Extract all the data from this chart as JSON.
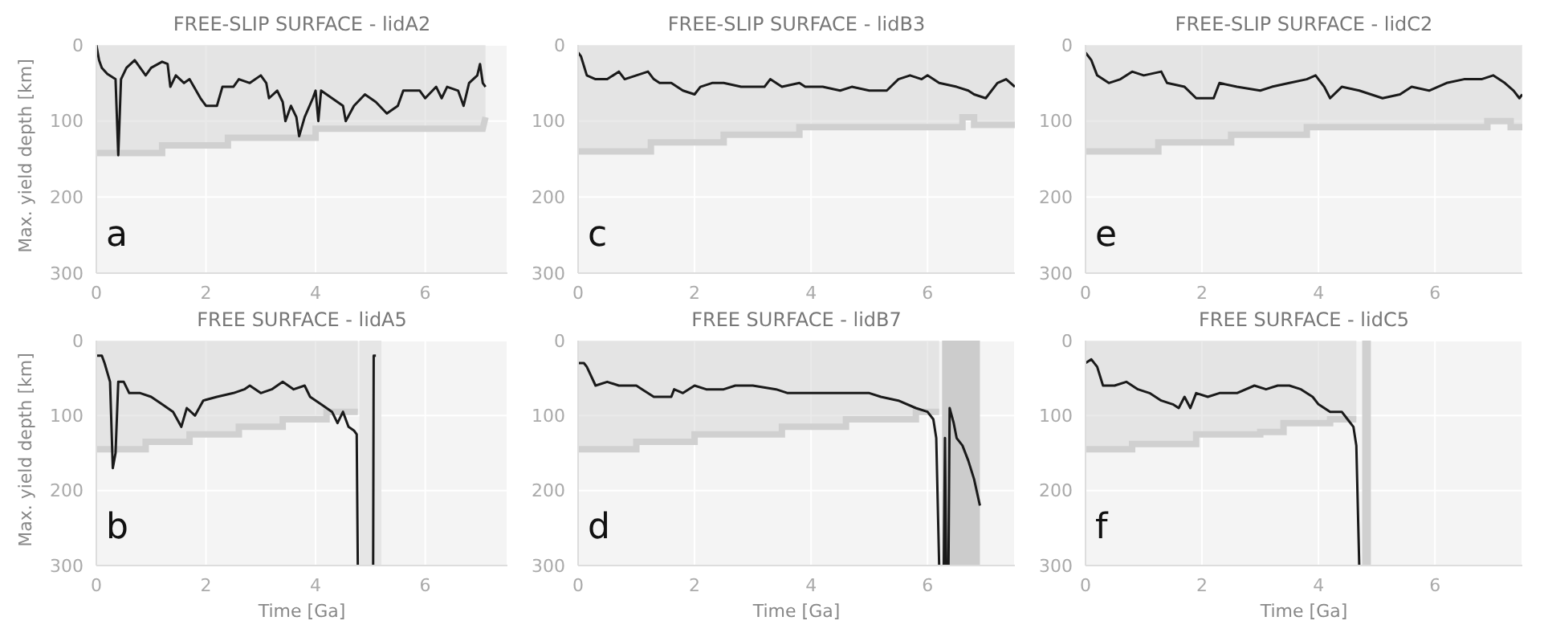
{
  "chart_data": [
    {
      "type": "line",
      "title": "FREE-SLIP SURFACE - lidA2",
      "ylabel": "Max. yield depth [km]",
      "xlim": [
        0,
        7.5
      ],
      "xticks": [
        0,
        2,
        4,
        6
      ],
      "ylim": [
        300,
        0
      ],
      "yticks": [
        0,
        100,
        200,
        300
      ],
      "grid": true,
      "annotations": [
        "a"
      ],
      "series": [
        {
          "type": "area",
          "color": "#d0d0d0",
          "x": [
            0,
            1.2,
            1.2,
            2.4,
            2.4,
            4.0,
            4.0,
            7.05,
            7.1
          ],
          "values": [
            142,
            142,
            132,
            132,
            122,
            122,
            110,
            110,
            95
          ]
        },
        {
          "type": "line",
          "color": "#1a1a1a",
          "x": [
            0,
            0.05,
            0.1,
            0.2,
            0.35,
            0.4,
            0.45,
            0.55,
            0.7,
            0.8,
            0.9,
            1.0,
            1.2,
            1.3,
            1.35,
            1.45,
            1.6,
            1.7,
            1.9,
            2.0,
            2.2,
            2.3,
            2.5,
            2.6,
            2.8,
            3.0,
            3.1,
            3.15,
            3.3,
            3.4,
            3.45,
            3.55,
            3.65,
            3.7,
            3.8,
            3.95,
            4.0,
            4.05,
            4.1,
            4.3,
            4.5,
            4.55,
            4.7,
            4.9,
            5.1,
            5.3,
            5.5,
            5.6,
            5.9,
            6.0,
            6.2,
            6.3,
            6.4,
            6.6,
            6.7,
            6.8,
            6.95,
            7.0,
            7.05,
            7.1
          ],
          "values": [
            0,
            20,
            30,
            38,
            45,
            145,
            45,
            30,
            20,
            30,
            40,
            30,
            22,
            25,
            55,
            40,
            50,
            45,
            70,
            80,
            80,
            55,
            55,
            45,
            50,
            40,
            50,
            70,
            60,
            75,
            100,
            80,
            95,
            120,
            95,
            70,
            60,
            100,
            60,
            70,
            80,
            100,
            80,
            65,
            75,
            90,
            80,
            60,
            60,
            70,
            55,
            70,
            55,
            60,
            80,
            50,
            40,
            25,
            50,
            55
          ]
        }
      ]
    },
    {
      "type": "line",
      "title": "FREE-SLIP SURFACE - lidB3",
      "xlim": [
        0,
        7.5
      ],
      "xticks": [
        0,
        2,
        4,
        6
      ],
      "ylim": [
        300,
        0
      ],
      "yticks": [
        0,
        100,
        200,
        300
      ],
      "grid": true,
      "annotations": [
        "c"
      ],
      "series": [
        {
          "type": "area",
          "color": "#d0d0d0",
          "x": [
            0,
            1.25,
            1.25,
            2.5,
            2.5,
            3.8,
            3.8,
            6.6,
            6.6,
            6.8,
            6.8,
            7.5
          ],
          "values": [
            140,
            140,
            128,
            128,
            118,
            118,
            108,
            108,
            95,
            95,
            105,
            105
          ]
        },
        {
          "type": "line",
          "color": "#1a1a1a",
          "x": [
            0,
            0.05,
            0.15,
            0.3,
            0.5,
            0.7,
            0.8,
            1.0,
            1.2,
            1.3,
            1.4,
            1.6,
            1.8,
            2.0,
            2.1,
            2.3,
            2.5,
            2.8,
            3.2,
            3.3,
            3.5,
            3.8,
            3.9,
            4.2,
            4.5,
            4.7,
            5.0,
            5.3,
            5.5,
            5.7,
            5.9,
            6.0,
            6.2,
            6.5,
            6.7,
            6.8,
            7.0,
            7.2,
            7.35,
            7.5
          ],
          "values": [
            10,
            15,
            40,
            45,
            45,
            35,
            45,
            40,
            35,
            45,
            50,
            50,
            60,
            65,
            55,
            50,
            50,
            55,
            55,
            45,
            55,
            50,
            55,
            55,
            60,
            55,
            60,
            60,
            45,
            40,
            45,
            40,
            50,
            55,
            60,
            65,
            70,
            50,
            45,
            55
          ]
        }
      ]
    },
    {
      "type": "line",
      "title": "FREE-SLIP SURFACE - lidC2",
      "xlim": [
        0,
        7.5
      ],
      "xticks": [
        0,
        2,
        4,
        6
      ],
      "ylim": [
        300,
        0
      ],
      "yticks": [
        0,
        100,
        200,
        300
      ],
      "grid": true,
      "annotations": [
        "e"
      ],
      "series": [
        {
          "type": "area",
          "color": "#d0d0d0",
          "x": [
            0,
            1.25,
            1.25,
            2.5,
            2.5,
            3.8,
            3.8,
            6.9,
            6.9,
            7.3,
            7.3,
            7.5
          ],
          "values": [
            140,
            140,
            128,
            128,
            118,
            118,
            108,
            108,
            100,
            100,
            108,
            108
          ]
        },
        {
          "type": "line",
          "color": "#1a1a1a",
          "x": [
            0,
            0.1,
            0.2,
            0.4,
            0.6,
            0.8,
            1.0,
            1.3,
            1.4,
            1.7,
            1.9,
            2.2,
            2.3,
            2.6,
            3.0,
            3.2,
            3.5,
            3.8,
            3.95,
            4.1,
            4.2,
            4.4,
            4.7,
            4.9,
            5.1,
            5.4,
            5.6,
            5.9,
            6.2,
            6.5,
            6.8,
            7.0,
            7.2,
            7.35,
            7.45,
            7.5
          ],
          "values": [
            10,
            20,
            40,
            50,
            45,
            35,
            40,
            35,
            50,
            55,
            70,
            70,
            50,
            55,
            60,
            55,
            50,
            45,
            40,
            55,
            70,
            55,
            60,
            65,
            70,
            65,
            55,
            60,
            50,
            45,
            45,
            40,
            50,
            60,
            70,
            65
          ]
        }
      ]
    },
    {
      "type": "line",
      "title": "FREE SURFACE - lidA5",
      "ylabel": "Max. yield depth [km]",
      "xlabel": "Time [Ga]",
      "xlim": [
        0,
        7.5
      ],
      "xticks": [
        0,
        2,
        4,
        6
      ],
      "ylim": [
        300,
        0
      ],
      "yticks": [
        0,
        100,
        200,
        300
      ],
      "grid": true,
      "annotations": [
        "b"
      ],
      "bands": [
        {
          "axis": "x",
          "from": 4.8,
          "to": 5.2,
          "color": "#e6e6e6"
        }
      ],
      "series": [
        {
          "type": "area",
          "color": "#d0d0d0",
          "x": [
            0,
            0.9,
            0.9,
            1.7,
            1.7,
            2.6,
            2.6,
            3.4,
            3.4,
            4.2,
            4.2,
            4.77
          ],
          "values": [
            145,
            145,
            135,
            135,
            125,
            125,
            115,
            115,
            105,
            105,
            95,
            95
          ]
        },
        {
          "type": "line",
          "color": "#1a1a1a",
          "x": [
            0,
            0.1,
            0.15,
            0.25,
            0.3,
            0.35,
            0.4,
            0.5,
            0.6,
            0.8,
            1.0,
            1.2,
            1.4,
            1.55,
            1.65,
            1.8,
            1.95,
            2.2,
            2.5,
            2.7,
            2.8,
            3.0,
            3.2,
            3.4,
            3.6,
            3.8,
            3.9,
            4.1,
            4.3,
            4.4,
            4.5,
            4.6,
            4.7,
            4.75,
            4.77,
            4.9,
            5.05,
            5.06,
            5.1
          ],
          "values": [
            20,
            20,
            30,
            55,
            170,
            150,
            55,
            55,
            70,
            70,
            75,
            85,
            95,
            115,
            90,
            100,
            80,
            75,
            70,
            65,
            60,
            70,
            65,
            55,
            65,
            60,
            75,
            85,
            95,
            110,
            95,
            115,
            120,
            125,
            300,
            null,
            300,
            20,
            20
          ]
        }
      ]
    },
    {
      "type": "line",
      "title": "FREE SURFACE - lidB7",
      "xlabel": "Time [Ga]",
      "xlim": [
        0,
        7.5
      ],
      "xticks": [
        0,
        2,
        4,
        6
      ],
      "ylim": [
        300,
        0
      ],
      "yticks": [
        0,
        100,
        200,
        300
      ],
      "grid": true,
      "annotations": [
        "d"
      ],
      "bands": [
        {
          "axis": "x",
          "from": 6.25,
          "to": 6.9,
          "color": "#cccccc"
        }
      ],
      "series": [
        {
          "type": "area",
          "color": "#d0d0d0",
          "x": [
            0,
            1.0,
            1.0,
            2.0,
            2.0,
            3.5,
            3.5,
            4.6,
            4.6,
            5.8,
            5.8,
            6.2
          ],
          "values": [
            145,
            145,
            135,
            135,
            125,
            125,
            115,
            115,
            105,
            105,
            95,
            95
          ]
        },
        {
          "type": "line",
          "color": "#1a1a1a",
          "x": [
            0,
            0.1,
            0.15,
            0.3,
            0.5,
            0.7,
            1.0,
            1.1,
            1.3,
            1.6,
            1.65,
            1.8,
            2.0,
            2.2,
            2.5,
            2.7,
            3.0,
            3.4,
            3.6,
            4.0,
            4.5,
            5.0,
            5.2,
            5.5,
            5.8,
            6.0,
            6.1,
            6.15,
            6.2,
            6.25,
            6.28,
            6.3,
            6.32,
            6.34,
            6.36,
            6.38,
            6.45,
            6.5,
            6.6,
            6.7,
            6.8,
            6.9
          ],
          "values": [
            30,
            30,
            35,
            60,
            55,
            60,
            60,
            65,
            75,
            75,
            65,
            70,
            60,
            65,
            65,
            60,
            60,
            65,
            70,
            70,
            70,
            70,
            75,
            80,
            90,
            95,
            105,
            130,
            300,
            null,
            300,
            130,
            300,
            null,
            300,
            90,
            110,
            130,
            140,
            160,
            185,
            220
          ]
        }
      ]
    },
    {
      "type": "line",
      "title": "FREE SURFACE - lidC5",
      "xlabel": "Time [Ga]",
      "xlim": [
        0,
        7.5
      ],
      "xticks": [
        0,
        2,
        4,
        6
      ],
      "ylim": [
        300,
        0
      ],
      "yticks": [
        0,
        100,
        200,
        300
      ],
      "grid": true,
      "annotations": [
        "f"
      ],
      "bands": [
        {
          "axis": "x",
          "from": 4.75,
          "to": 4.9,
          "color": "#d0d0d0"
        }
      ],
      "series": [
        {
          "type": "area",
          "color": "#d0d0d0",
          "x": [
            0,
            0.8,
            0.8,
            1.9,
            1.9,
            3.0,
            3.0,
            3.4,
            3.4,
            4.2,
            4.2,
            4.65
          ],
          "values": [
            145,
            145,
            138,
            138,
            125,
            125,
            122,
            122,
            110,
            110,
            105,
            105
          ]
        },
        {
          "type": "line",
          "color": "#1a1a1a",
          "x": [
            0,
            0.1,
            0.2,
            0.3,
            0.5,
            0.7,
            0.9,
            1.1,
            1.3,
            1.5,
            1.6,
            1.7,
            1.8,
            1.9,
            2.1,
            2.3,
            2.6,
            2.9,
            3.1,
            3.3,
            3.5,
            3.7,
            3.9,
            4.0,
            4.2,
            4.4,
            4.5,
            4.6,
            4.65,
            4.7
          ],
          "values": [
            30,
            25,
            35,
            60,
            60,
            55,
            65,
            70,
            80,
            85,
            90,
            75,
            90,
            70,
            75,
            70,
            70,
            60,
            65,
            60,
            60,
            65,
            75,
            85,
            95,
            95,
            105,
            115,
            140,
            300
          ]
        }
      ]
    }
  ]
}
